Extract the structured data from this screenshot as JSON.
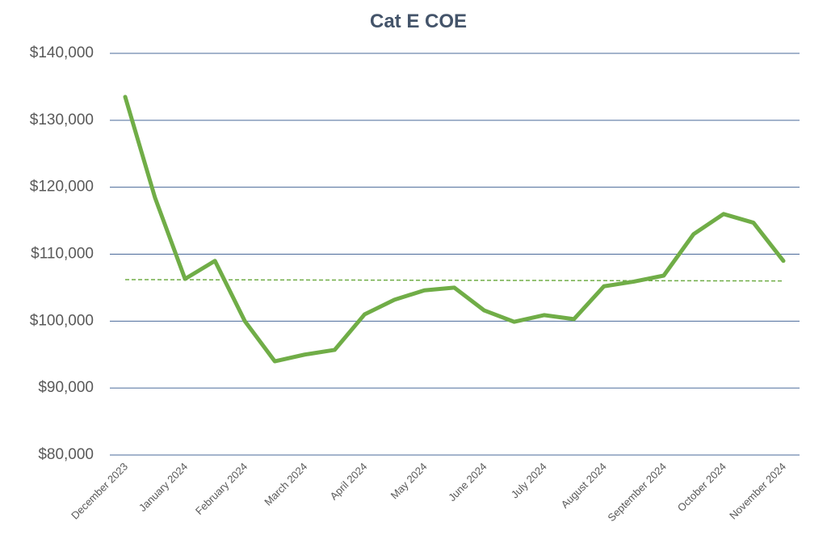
{
  "chart_data": {
    "type": "line",
    "title": "Cat E COE",
    "categories": [
      "December 2023",
      null,
      "January 2024",
      null,
      "February 2024",
      null,
      "March 2024",
      null,
      "April 2024",
      null,
      "May 2024",
      null,
      "June 2024",
      null,
      "July 2024",
      null,
      "August 2024",
      null,
      "September 2024",
      null,
      "October 2024",
      null,
      "November 2024"
    ],
    "series": [
      {
        "color": "#70ad47",
        "values": [
          133500,
          118400,
          106300,
          109000,
          100000,
          94000,
          95000,
          95700,
          101000,
          103200,
          104600,
          105000,
          101600,
          99900,
          100900,
          100300,
          105200,
          105900,
          106800,
          113000,
          116000,
          114700,
          109000
        ]
      }
    ],
    "trendline": {
      "color": "#70ad47",
      "values": [
        106200,
        106000
      ]
    },
    "ylim": [
      80000,
      140000
    ],
    "yticks": [
      {
        "value": 80000,
        "label": "$80,000"
      },
      {
        "value": 90000,
        "label": "$90,000"
      },
      {
        "value": 100000,
        "label": "$100,000"
      },
      {
        "value": 110000,
        "label": "$110,000"
      },
      {
        "value": 120000,
        "label": "$120,000"
      },
      {
        "value": 130000,
        "label": "$130,000"
      },
      {
        "value": 140000,
        "label": "$140,000"
      }
    ],
    "grid": true
  }
}
